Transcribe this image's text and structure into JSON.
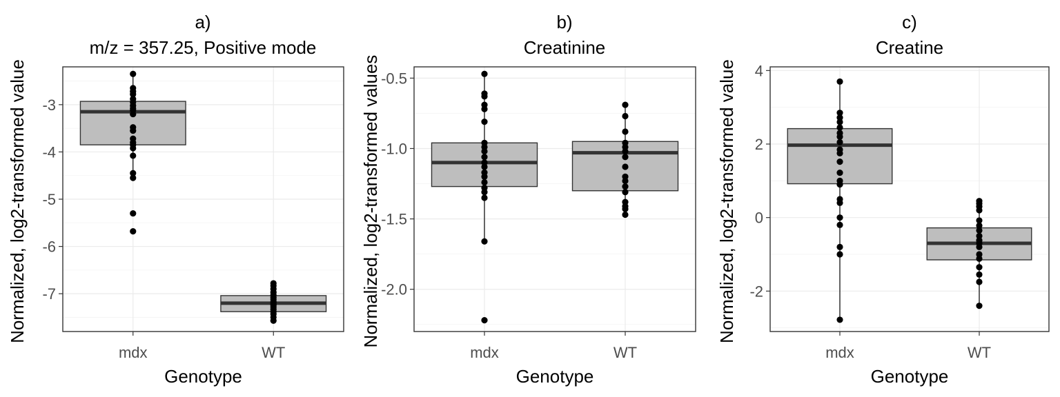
{
  "chart_data": [
    {
      "type": "box",
      "title": "a)",
      "subtitle": "m/z = 357.25, Positive mode",
      "xlabel": "Genotype",
      "ylabel": "Normalized, log2-transformed value",
      "categories": [
        "mdx",
        "WT"
      ],
      "ylim": [
        -7.8,
        -2.2
      ],
      "yticks": [
        -7,
        -6,
        -5,
        -4,
        -3
      ],
      "ytick_labels": [
        "-7",
        "-6",
        "-5",
        "-4",
        "-3"
      ],
      "grid": true,
      "boxes": [
        {
          "category": "mdx",
          "whisker_low": -4.55,
          "q1": -3.85,
          "median": -3.15,
          "q3": -2.93,
          "whisker_high": -2.35
        },
        {
          "category": "WT",
          "whisker_low": -7.58,
          "q1": -7.38,
          "median": -7.2,
          "q3": -7.04,
          "whisker_high": -6.78
        }
      ],
      "points": {
        "mdx": [
          -2.35,
          -2.65,
          -2.72,
          -2.78,
          -2.88,
          -2.95,
          -3.02,
          -3.08,
          -3.12,
          -3.2,
          -3.48,
          -3.55,
          -3.72,
          -3.8,
          -3.85,
          -3.92,
          -4.08,
          -4.45,
          -4.55,
          -5.3,
          -5.68
        ],
        "WT": [
          -6.78,
          -6.83,
          -6.9,
          -6.97,
          -7.03,
          -7.08,
          -7.12,
          -7.17,
          -7.2,
          -7.24,
          -7.28,
          -7.33,
          -7.38,
          -7.43,
          -7.5,
          -7.57
        ]
      }
    },
    {
      "type": "box",
      "title": "b)",
      "subtitle": "Creatinine",
      "xlabel": "Genotype",
      "ylabel": "Normalized, log2-transformed values",
      "categories": [
        "mdx",
        "WT"
      ],
      "ylim": [
        -2.3,
        -0.42
      ],
      "yticks": [
        -2.0,
        -1.5,
        -1.0,
        -0.5
      ],
      "ytick_labels": [
        "-2.0",
        "-1.5",
        "-1.0",
        "-0.5"
      ],
      "grid": true,
      "boxes": [
        {
          "category": "mdx",
          "whisker_low": -1.66,
          "q1": -1.27,
          "median": -1.1,
          "q3": -0.96,
          "whisker_high": -0.47
        },
        {
          "category": "WT",
          "whisker_low": -1.47,
          "q1": -1.3,
          "median": -1.03,
          "q3": -0.95,
          "whisker_high": -0.69
        }
      ],
      "points": {
        "mdx": [
          -0.47,
          -0.61,
          -0.63,
          -0.69,
          -0.72,
          -0.81,
          -0.96,
          -0.99,
          -1.02,
          -1.06,
          -1.1,
          -1.13,
          -1.17,
          -1.2,
          -1.24,
          -1.28,
          -1.31,
          -1.35,
          -1.66,
          -2.22
        ],
        "WT": [
          -0.69,
          -0.77,
          -0.88,
          -0.96,
          -0.99,
          -1.02,
          -1.06,
          -1.13,
          -1.2,
          -1.23,
          -1.27,
          -1.31,
          -1.38,
          -1.41,
          -1.43,
          -1.47
        ]
      }
    },
    {
      "type": "box",
      "title": "c)",
      "subtitle": "Creatine",
      "xlabel": "Genotype",
      "ylabel": "Normalized, log2-transformed value",
      "categories": [
        "mdx",
        "WT"
      ],
      "ylim": [
        -3.1,
        4.1
      ],
      "yticks": [
        -2,
        0,
        2,
        4
      ],
      "ytick_labels": [
        "-2",
        "0",
        "2",
        "4"
      ],
      "grid": true,
      "boxes": [
        {
          "category": "mdx",
          "whisker_low": -2.78,
          "q1": 0.92,
          "median": 1.97,
          "q3": 2.42,
          "whisker_high": 3.7
        },
        {
          "category": "WT",
          "whisker_low": -2.4,
          "q1": -1.15,
          "median": -0.7,
          "q3": -0.28,
          "whisker_high": 0.45
        }
      ],
      "points": {
        "mdx": [
          3.7,
          2.85,
          2.72,
          2.6,
          2.45,
          2.3,
          2.2,
          2.05,
          1.85,
          1.75,
          1.52,
          1.22,
          1.0,
          0.9,
          0.5,
          0.4,
          0.0,
          -0.2,
          -0.8,
          -1.0,
          -2.78
        ],
        "WT": [
          0.45,
          0.38,
          0.3,
          0.2,
          -0.08,
          -0.22,
          -0.35,
          -0.5,
          -0.62,
          -0.7,
          -0.8,
          -1.0,
          -1.12,
          -1.35,
          -1.55,
          -1.75,
          -2.4
        ]
      }
    }
  ]
}
